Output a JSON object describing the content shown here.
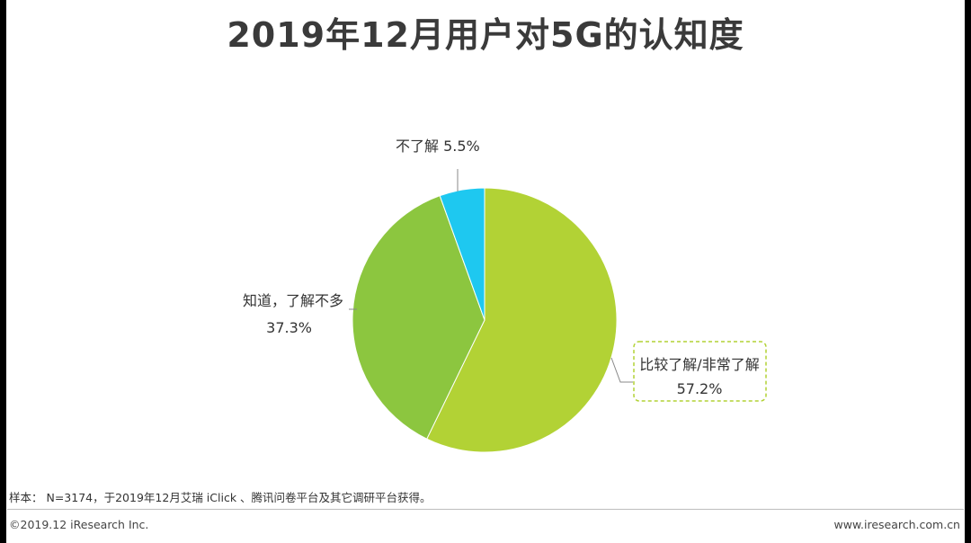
{
  "title": "2019年12月用户对5G的认知度",
  "chart_data": {
    "type": "pie",
    "title": "2019年12月用户对5G的认知度",
    "slices": [
      {
        "name": "比较了解/非常了解",
        "value": 57.2,
        "label": "57.2%",
        "color": "#b2d235"
      },
      {
        "name": "知道，了解不多",
        "value": 37.3,
        "label": "37.3%",
        "color": "#8cc63f"
      },
      {
        "name": "不了解",
        "value": 5.5,
        "label": "5.5%",
        "color": "#1ec8f0"
      }
    ],
    "legend": "none"
  },
  "footer": {
    "note": "样本： N=3174，于2019年12月艾瑞 iClick 、腾讯问卷平台及其它调研平台获得。",
    "copyright": "©2019.12 iResearch Inc.",
    "website": "www.iresearch.com.cn"
  }
}
